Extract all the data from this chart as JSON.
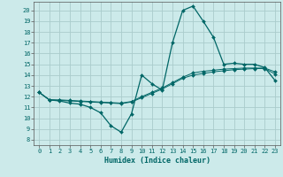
{
  "title": "",
  "xlabel": "Humidex (Indice chaleur)",
  "ylabel": "",
  "background_color": "#cceaea",
  "grid_color": "#aacccc",
  "line_color": "#006666",
  "spine_color": "#555555",
  "xlim": [
    -0.5,
    23.5
  ],
  "ylim": [
    7.5,
    20.8
  ],
  "yticks": [
    8,
    9,
    10,
    11,
    12,
    13,
    14,
    15,
    16,
    17,
    18,
    19,
    20
  ],
  "xticks": [
    0,
    1,
    2,
    3,
    4,
    5,
    6,
    7,
    8,
    9,
    10,
    11,
    12,
    13,
    14,
    15,
    16,
    17,
    18,
    19,
    20,
    21,
    22,
    23
  ],
  "line1_x": [
    0,
    1,
    2,
    3,
    4,
    5,
    6,
    7,
    8,
    9,
    10,
    11,
    12,
    13,
    14,
    15,
    16,
    17,
    18,
    19,
    20,
    21,
    22,
    23
  ],
  "line1_y": [
    12.4,
    11.7,
    11.6,
    11.4,
    11.3,
    11.0,
    10.5,
    9.3,
    8.7,
    10.4,
    14.0,
    13.2,
    12.6,
    17.0,
    20.0,
    20.4,
    19.0,
    17.5,
    15.0,
    15.1,
    15.0,
    15.0,
    14.7,
    13.5
  ],
  "line2_x": [
    0,
    1,
    2,
    3,
    4,
    5,
    6,
    7,
    8,
    9,
    10,
    11,
    12,
    13,
    14,
    15,
    16,
    17,
    18,
    19,
    20,
    21,
    22,
    23
  ],
  "line2_y": [
    12.4,
    11.7,
    11.7,
    11.65,
    11.6,
    11.55,
    11.5,
    11.45,
    11.4,
    11.55,
    12.0,
    12.4,
    12.8,
    13.3,
    13.8,
    14.2,
    14.35,
    14.45,
    14.55,
    14.6,
    14.65,
    14.65,
    14.65,
    14.3
  ],
  "line3_x": [
    0,
    1,
    2,
    3,
    4,
    5,
    6,
    7,
    8,
    9,
    10,
    11,
    12,
    13,
    14,
    15,
    16,
    17,
    18,
    19,
    20,
    21,
    22,
    23
  ],
  "line3_y": [
    12.4,
    11.7,
    11.65,
    11.6,
    11.55,
    11.5,
    11.45,
    11.4,
    11.35,
    11.5,
    11.9,
    12.3,
    12.7,
    13.2,
    13.7,
    14.0,
    14.15,
    14.3,
    14.4,
    14.5,
    14.55,
    14.6,
    14.6,
    14.1
  ]
}
